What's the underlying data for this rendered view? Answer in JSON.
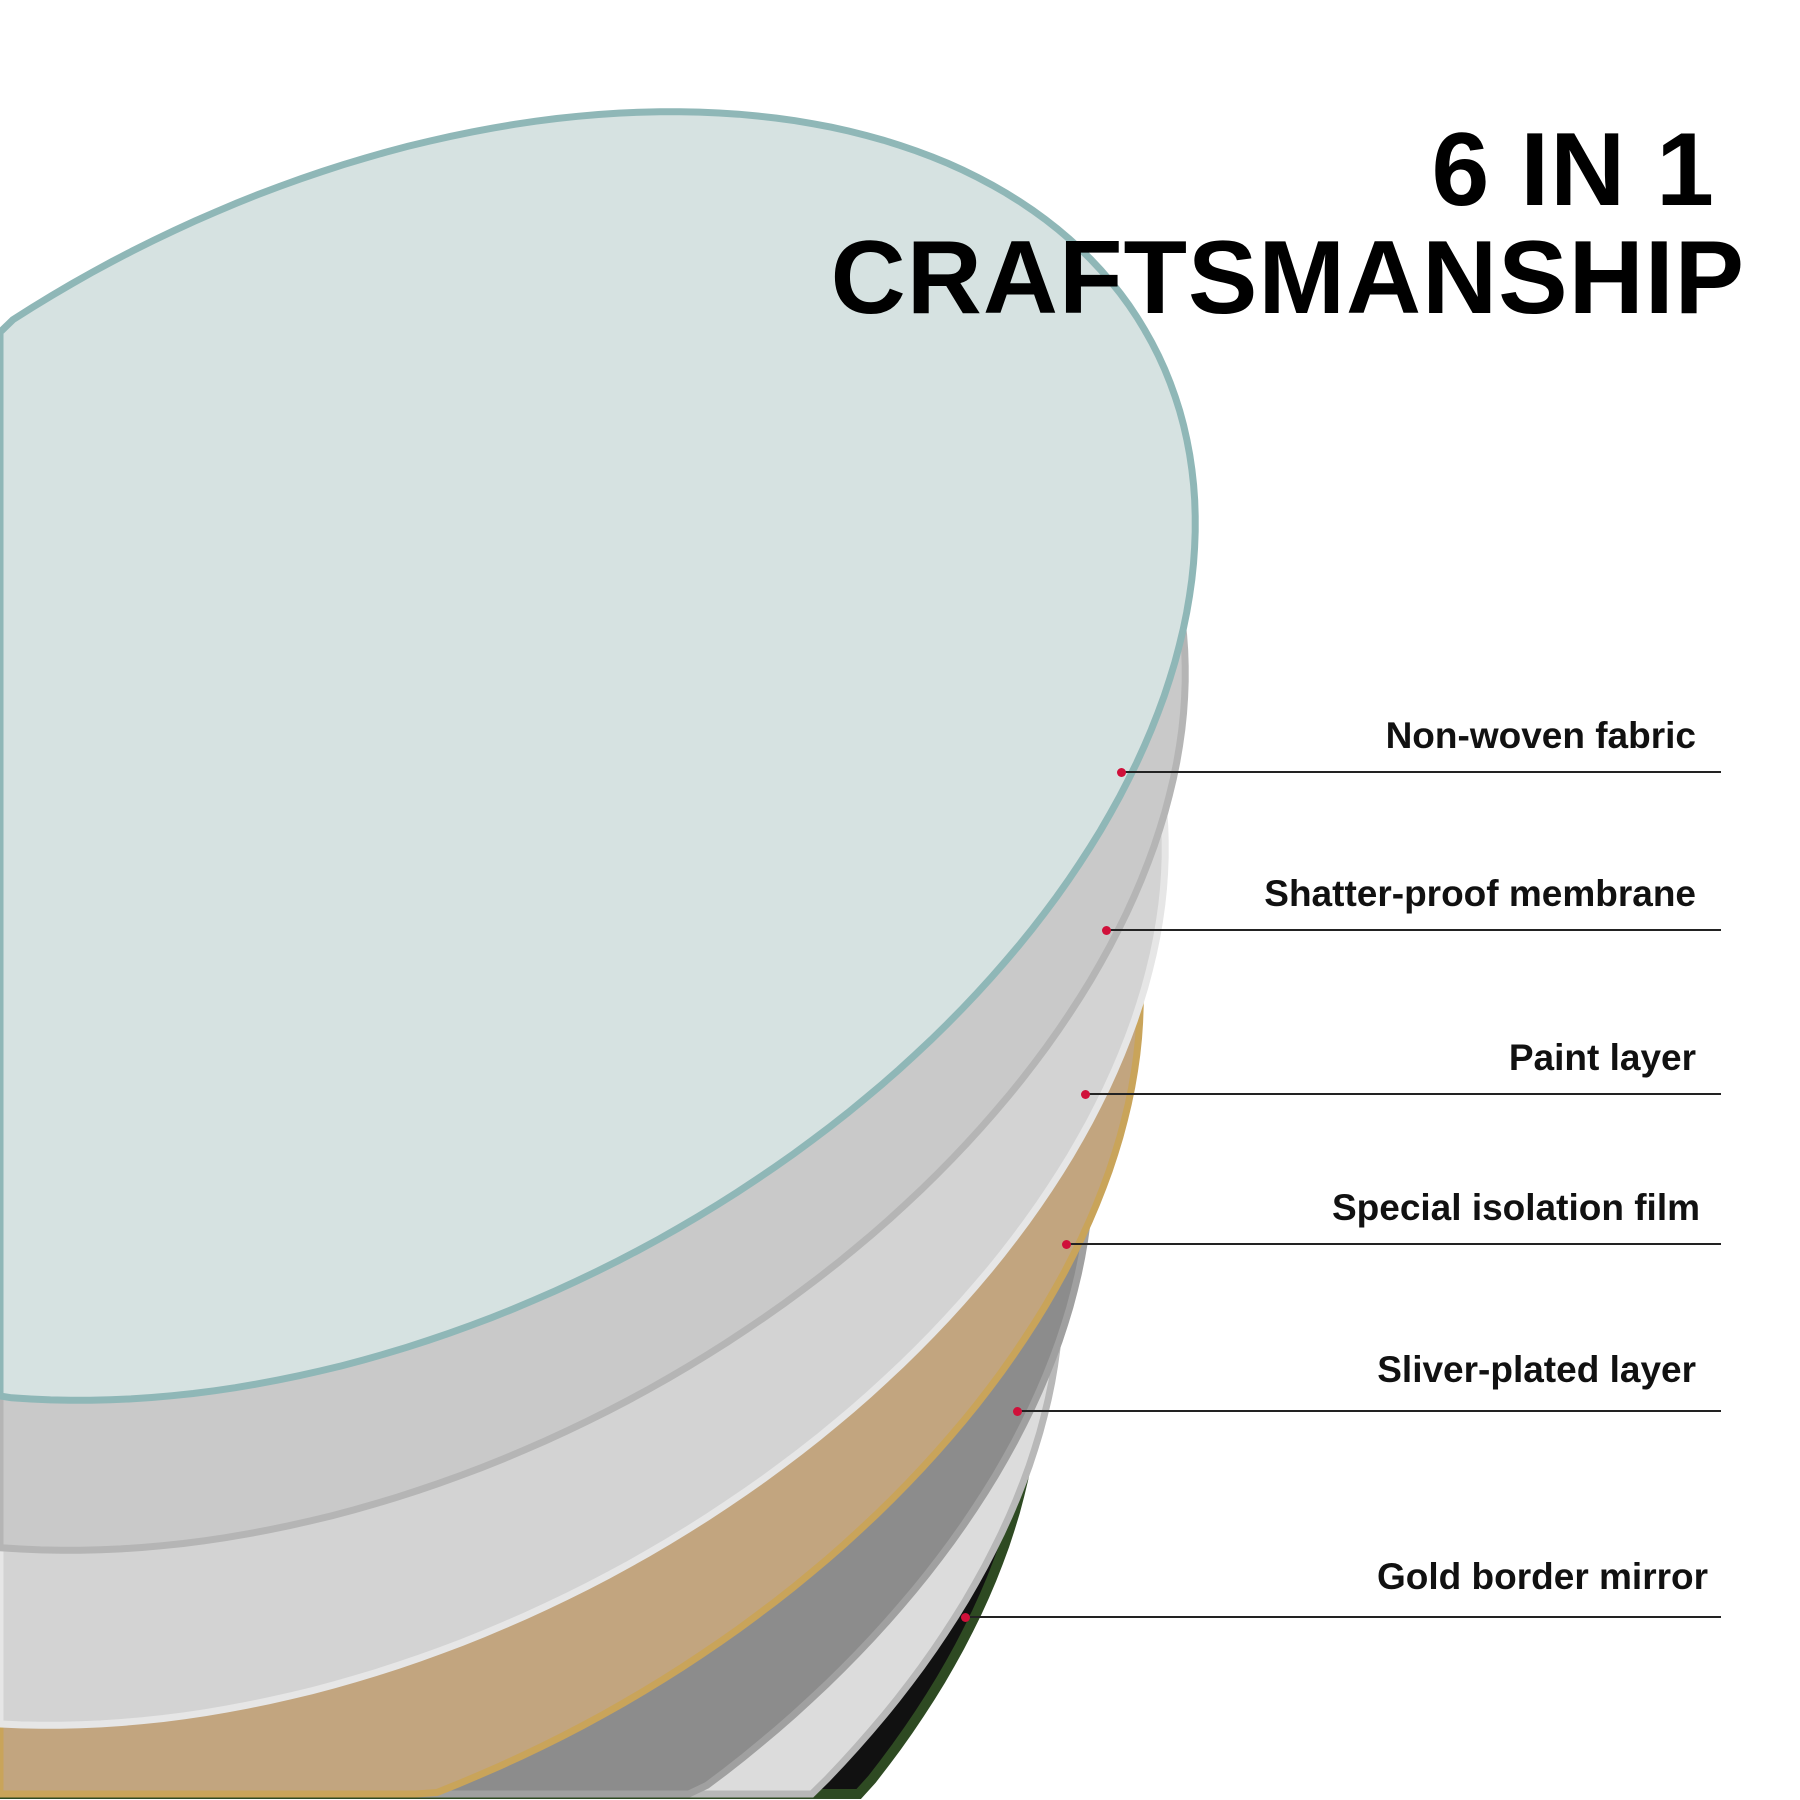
{
  "title": {
    "line1": "6 IN 1",
    "line2": "CRAFTSMANSHIP"
  },
  "layers": [
    {
      "label": "Non-woven fabric",
      "color": "#d6e2e1"
    },
    {
      "label": "Shatter-proof membrane",
      "color": "#c9c9c9"
    },
    {
      "label": "Paint layer",
      "color": "#d3d3d3"
    },
    {
      "label": "Special isolation film",
      "color": "#c2a57f"
    },
    {
      "label": "Sliver-plated layer",
      "color": "#8c8c8c"
    },
    {
      "label": "Gold border mirror",
      "color": "#dcdcdc"
    }
  ],
  "colors": {
    "pointer_dot": "#d0103a",
    "glass_edge": "#8fb7b7",
    "gold_edge": "#c9a45a",
    "mirror_edge": "#111111"
  }
}
